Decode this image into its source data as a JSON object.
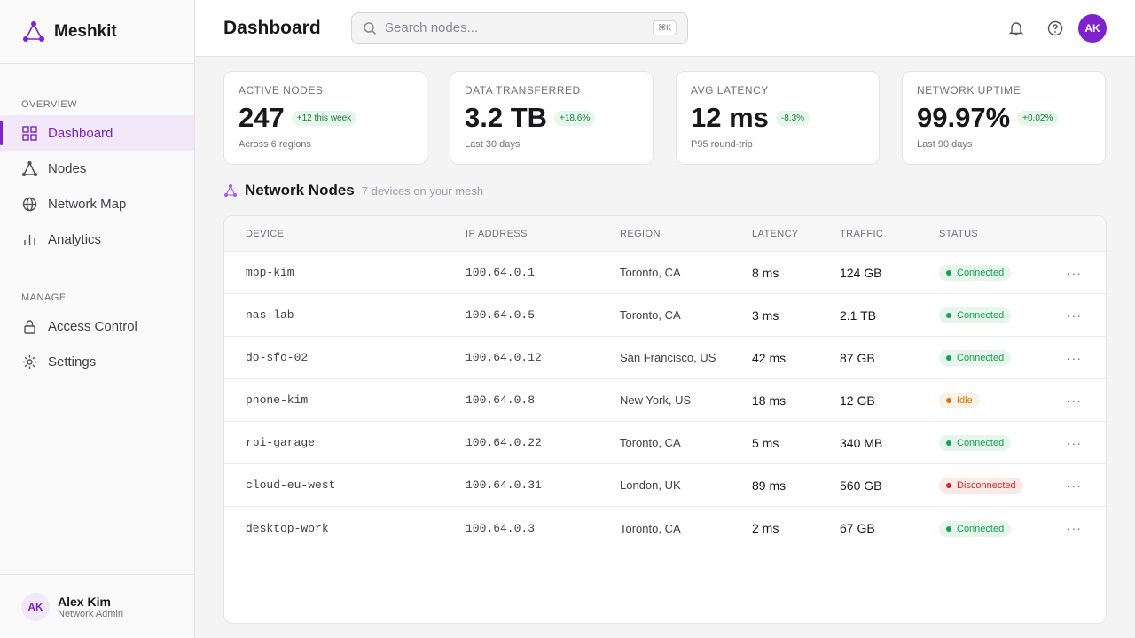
{
  "sidebar": {
    "brand": "Meshkit",
    "sections": [
      {
        "label": "OVERVIEW",
        "items": [
          {
            "label": "Dashboard",
            "active": true
          },
          {
            "label": "Nodes",
            "active": false
          },
          {
            "label": "Network Map",
            "active": false
          },
          {
            "label": "Analytics",
            "active": false
          }
        ]
      },
      {
        "label": "MANAGE",
        "items": [
          {
            "label": "Access Control",
            "active": false
          },
          {
            "label": "Settings",
            "active": false
          }
        ]
      }
    ],
    "user": {
      "initials": "AK",
      "name": "Alex Kim",
      "role": "Network Admin"
    }
  },
  "header": {
    "title": "Dashboard",
    "search_placeholder": "Search nodes...",
    "shortcut": "⌘K",
    "avatar": "AK"
  },
  "stats": [
    {
      "label": "ACTIVE NODES",
      "value": "247",
      "delta": "+12 this week",
      "note": "Across 6 regions"
    },
    {
      "label": "DATA TRANSFERRED",
      "value": "3.2 TB",
      "delta": "+18.6%",
      "note": "Last 30 days"
    },
    {
      "label": "AVG LATENCY",
      "value": "12 ms",
      "delta": "-8.3%",
      "note": "P95 round-trip"
    },
    {
      "label": "NETWORK UPTIME",
      "value": "99.97%",
      "delta": "+0.02%",
      "note": "Last 90 days"
    }
  ],
  "table": {
    "title": "Network Nodes",
    "subtitle": "7 devices on your mesh",
    "columns": [
      "DEVICE",
      "IP ADDRESS",
      "REGION",
      "LATENCY",
      "TRAFFIC",
      "STATUS"
    ],
    "rows": [
      {
        "device": "mbp-kim",
        "ip": "100.64.0.1",
        "region": "Toronto, CA",
        "latency": "8 ms",
        "traffic": "124 GB",
        "status": "Connected",
        "status_color": "#16a34a"
      },
      {
        "device": "nas-lab",
        "ip": "100.64.0.5",
        "region": "Toronto, CA",
        "latency": "3 ms",
        "traffic": "2.1 TB",
        "status": "Connected",
        "status_color": "#16a34a"
      },
      {
        "device": "do-sfo-02",
        "ip": "100.64.0.12",
        "region": "San Francisco, US",
        "latency": "42 ms",
        "traffic": "87 GB",
        "status": "Connected",
        "status_color": "#16a34a"
      },
      {
        "device": "phone-kim",
        "ip": "100.64.0.8",
        "region": "New York, US",
        "latency": "18 ms",
        "traffic": "12 GB",
        "status": "Idle",
        "status_color": "#d97706"
      },
      {
        "device": "rpi-garage",
        "ip": "100.64.0.22",
        "region": "Toronto, CA",
        "latency": "5 ms",
        "traffic": "340 MB",
        "status": "Connected",
        "status_color": "#16a34a"
      },
      {
        "device": "cloud-eu-west",
        "ip": "100.64.0.31",
        "region": "London, UK",
        "latency": "89 ms",
        "traffic": "560 GB",
        "status": "Disconnected",
        "status_color": "#dc2626"
      },
      {
        "device": "desktop-work",
        "ip": "100.64.0.3",
        "region": "Toronto, CA",
        "latency": "2 ms",
        "traffic": "67 GB",
        "status": "Connected",
        "status_color": "#16a34a"
      }
    ]
  }
}
